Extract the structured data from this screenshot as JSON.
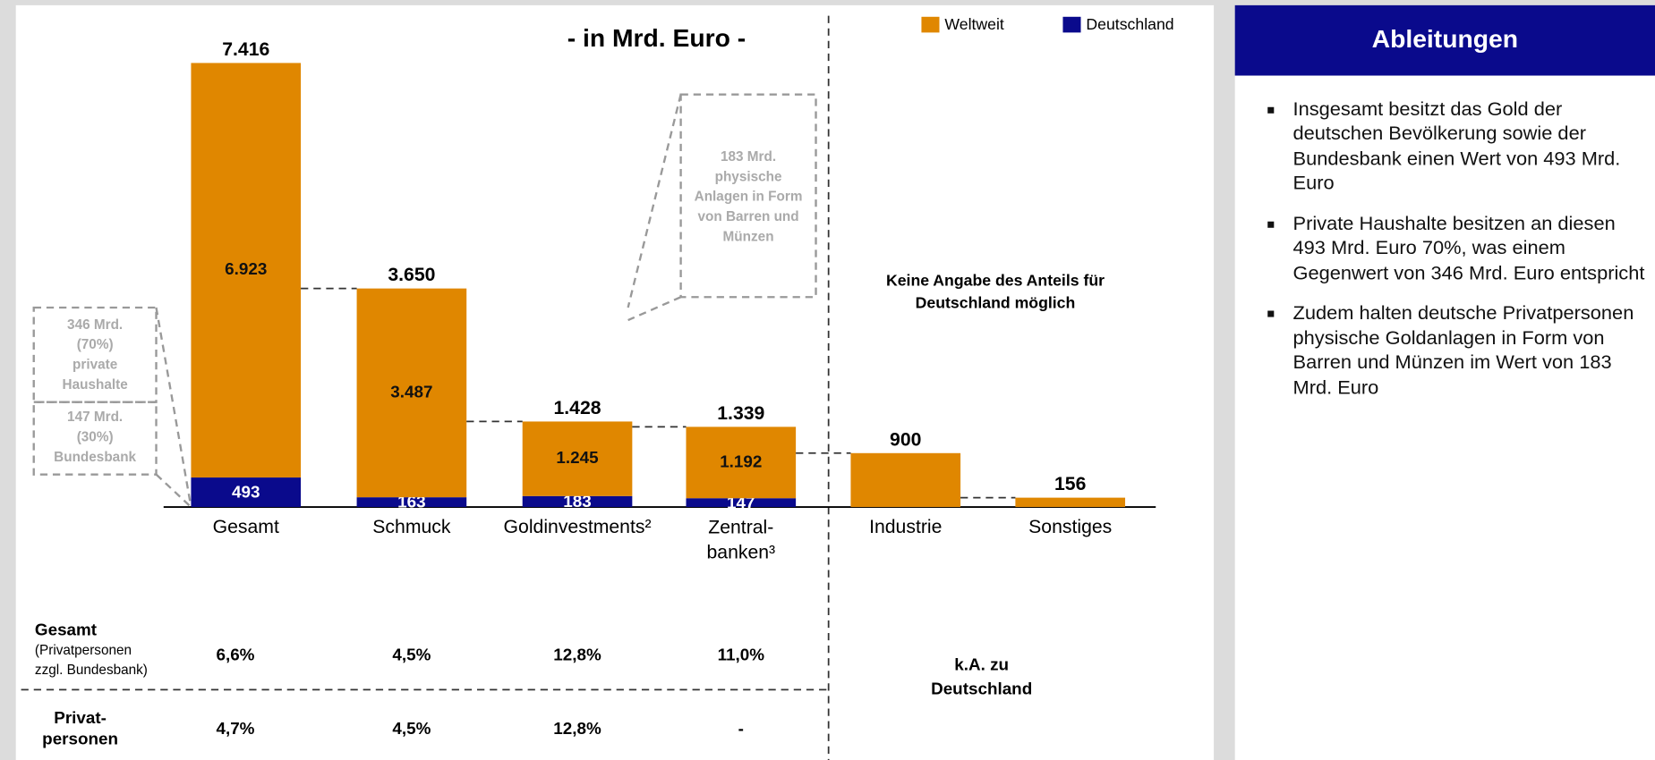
{
  "chart_data": {
    "type": "waterfall",
    "subtitle": "- in Mrd. Euro -",
    "categories": [
      "Gesamt",
      "Schmuck",
      "Goldinvestments²",
      "Zentral-\nbanken³",
      "Industrie",
      "Sonstiges"
    ],
    "totals": [
      7416,
      3650,
      1428,
      1339,
      900,
      156
    ],
    "total_labels": [
      "7.416",
      "3.650",
      "1.428",
      "1.339",
      "900",
      "156"
    ],
    "series": [
      {
        "name": "Deutschland",
        "color": "#0a0a8c",
        "values": [
          493,
          163,
          183,
          147,
          null,
          null
        ],
        "value_labels": [
          "493",
          "163",
          "183",
          "147",
          null,
          null
        ]
      },
      {
        "name": "Weltweit",
        "color": "#e08700",
        "values": [
          6923,
          3487,
          1245,
          1192,
          900,
          156
        ],
        "value_labels": [
          "6.923",
          "3.487",
          "1.245",
          "1.192",
          null,
          null
        ]
      }
    ],
    "annotations": {
      "private": "346 Mrd.\n(70%)\nprivate\nHaushalte",
      "bundesbank": "147 Mrd.\n(30%)\nBundesbank",
      "physisch": "183 Mrd.\nphysische\nAnlagen in Form\nvon Barren und\nMünzen",
      "keine_angabe": "Keine Angabe des Anteils für\nDeutschland möglich"
    },
    "share_table": {
      "rows": [
        {
          "label": "Gesamt",
          "note": "(Privatpersonen\nzzgl. Bundesbank)",
          "cells": [
            "6,6%",
            "4,5%",
            "12,8%",
            "11,0%"
          ]
        },
        {
          "label": "Privat-\npersonen",
          "cells": [
            "4,7%",
            "4,5%",
            "12,8%",
            "-"
          ]
        }
      ],
      "na": "k.A. zu\nDeutschland"
    }
  },
  "side_panel": {
    "title": "Ableitungen",
    "bullets": [
      "Insgesamt besitzt das Gold der deutschen Bevölkerung sowie der Bundesbank einen Wert von 493 Mrd. Euro",
      "Private Haushalte besitzen an diesen 493 Mrd. Euro 70%, was einem Gegenwert von 346 Mrd. Euro entspricht",
      "Zudem halten deutsche Privatpersonen physische Goldanlagen in Form von Barren und Münzen im Wert von 183 Mrd. Euro"
    ]
  }
}
